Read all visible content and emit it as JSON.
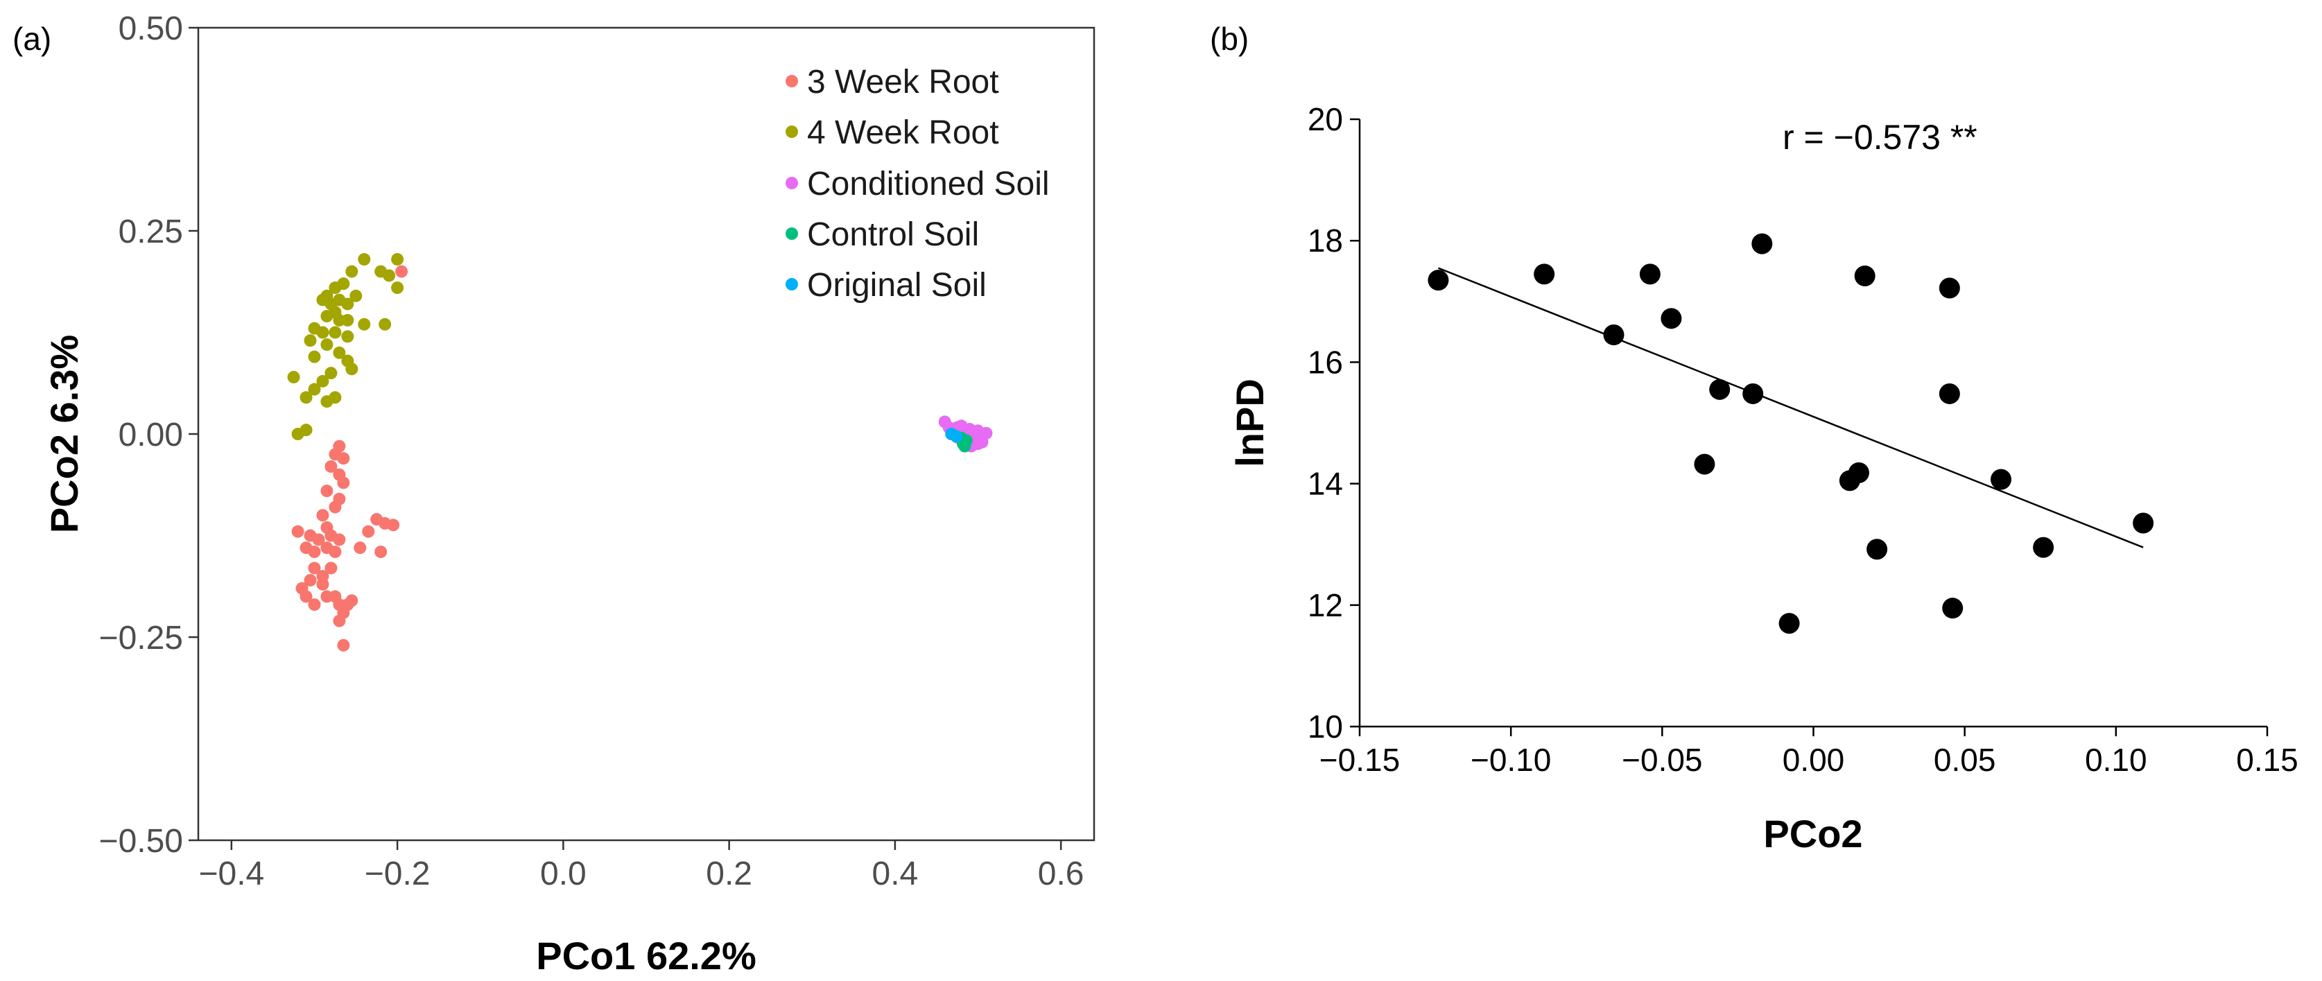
{
  "chart_data": [
    {
      "panel": "(a)",
      "type": "scatter",
      "title": "",
      "xlabel": "PCo1 62.2%",
      "ylabel": "PCo2 6.3%",
      "xlim": [
        -0.44,
        0.64
      ],
      "ylim": [
        -0.5,
        0.5
      ],
      "xticks": [
        -0.4,
        -0.2,
        0.0,
        0.2,
        0.4,
        0.6
      ],
      "xtick_labels": [
        "−0.4",
        "−0.2",
        "0.0",
        "0.2",
        "0.4",
        "0.6"
      ],
      "yticks": [
        0.5,
        0.25,
        0.0,
        -0.25,
        -0.5
      ],
      "ytick_labels": [
        "0.50",
        "0.25",
        "0.00",
        "−0.25",
        "−0.50"
      ],
      "grid": false,
      "legend_position": "top-right",
      "series": [
        {
          "name": "3 Week Root",
          "color": "#F8766D",
          "points": [
            [
              -0.195,
              0.2
            ],
            [
              -0.27,
              -0.015
            ],
            [
              -0.275,
              -0.025
            ],
            [
              -0.265,
              -0.03
            ],
            [
              -0.28,
              -0.04
            ],
            [
              -0.27,
              -0.05
            ],
            [
              -0.265,
              -0.06
            ],
            [
              -0.285,
              -0.07
            ],
            [
              -0.27,
              -0.08
            ],
            [
              -0.275,
              -0.09
            ],
            [
              -0.29,
              -0.1
            ],
            [
              -0.285,
              -0.115
            ],
            [
              -0.32,
              -0.12
            ],
            [
              -0.305,
              -0.125
            ],
            [
              -0.295,
              -0.13
            ],
            [
              -0.28,
              -0.125
            ],
            [
              -0.27,
              -0.13
            ],
            [
              -0.225,
              -0.105
            ],
            [
              -0.215,
              -0.11
            ],
            [
              -0.205,
              -0.112
            ],
            [
              -0.235,
              -0.12
            ],
            [
              -0.31,
              -0.14
            ],
            [
              -0.3,
              -0.145
            ],
            [
              -0.285,
              -0.14
            ],
            [
              -0.275,
              -0.145
            ],
            [
              -0.245,
              -0.14
            ],
            [
              -0.22,
              -0.145
            ],
            [
              -0.3,
              -0.165
            ],
            [
              -0.29,
              -0.175
            ],
            [
              -0.28,
              -0.165
            ],
            [
              -0.305,
              -0.18
            ],
            [
              -0.29,
              -0.185
            ],
            [
              -0.315,
              -0.19
            ],
            [
              -0.31,
              -0.2
            ],
            [
              -0.3,
              -0.21
            ],
            [
              -0.285,
              -0.2
            ],
            [
              -0.27,
              -0.21
            ],
            [
              -0.265,
              -0.22
            ],
            [
              -0.255,
              -0.205
            ],
            [
              -0.275,
              -0.2
            ],
            [
              -0.27,
              -0.23
            ],
            [
              -0.265,
              -0.26
            ],
            [
              -0.26,
              -0.21
            ]
          ]
        },
        {
          "name": "4 Week Root",
          "color": "#A3A500",
          "points": [
            [
              -0.24,
              0.215
            ],
            [
              -0.2,
              0.215
            ],
            [
              -0.22,
              0.2
            ],
            [
              -0.255,
              0.2
            ],
            [
              -0.265,
              0.185
            ],
            [
              -0.21,
              0.195
            ],
            [
              -0.2,
              0.18
            ],
            [
              -0.275,
              0.18
            ],
            [
              -0.285,
              0.17
            ],
            [
              -0.29,
              0.165
            ],
            [
              -0.28,
              0.16
            ],
            [
              -0.27,
              0.165
            ],
            [
              -0.26,
              0.16
            ],
            [
              -0.25,
              0.17
            ],
            [
              -0.275,
              0.15
            ],
            [
              -0.285,
              0.145
            ],
            [
              -0.27,
              0.14
            ],
            [
              -0.26,
              0.14
            ],
            [
              -0.24,
              0.135
            ],
            [
              -0.215,
              0.135
            ],
            [
              -0.3,
              0.13
            ],
            [
              -0.29,
              0.125
            ],
            [
              -0.275,
              0.125
            ],
            [
              -0.26,
              0.12
            ],
            [
              -0.305,
              0.115
            ],
            [
              -0.285,
              0.11
            ],
            [
              -0.27,
              0.1
            ],
            [
              -0.3,
              0.095
            ],
            [
              -0.26,
              0.09
            ],
            [
              -0.255,
              0.08
            ],
            [
              -0.28,
              0.075
            ],
            [
              -0.325,
              0.07
            ],
            [
              -0.29,
              0.065
            ],
            [
              -0.3,
              0.055
            ],
            [
              -0.31,
              0.045
            ],
            [
              -0.285,
              0.04
            ],
            [
              -0.275,
              0.045
            ],
            [
              -0.31,
              0.005
            ],
            [
              -0.32,
              0.0
            ]
          ]
        },
        {
          "name": "Conditioned Soil",
          "color": "#E76BF3",
          "points": [
            [
              0.46,
              0.015
            ],
            [
              0.465,
              0.008
            ],
            [
              0.47,
              0.003
            ],
            [
              0.475,
              0.008
            ],
            [
              0.48,
              0.005
            ],
            [
              0.485,
              0.002
            ],
            [
              0.49,
              0.006
            ],
            [
              0.495,
              0.0
            ],
            [
              0.5,
              0.004
            ],
            [
              0.505,
              -0.002
            ],
            [
              0.51,
              0.001
            ],
            [
              0.495,
              -0.008
            ],
            [
              0.5,
              -0.012
            ],
            [
              0.505,
              -0.01
            ],
            [
              0.485,
              -0.005
            ],
            [
              0.49,
              -0.012
            ],
            [
              0.475,
              -0.004
            ],
            [
              0.48,
              0.01
            ],
            [
              0.492,
              -0.015
            ]
          ]
        },
        {
          "name": "Control Soil",
          "color": "#00BF7D",
          "points": [
            [
              0.48,
              -0.005
            ],
            [
              0.482,
              -0.012
            ],
            [
              0.484,
              -0.015
            ],
            [
              0.486,
              -0.008
            ]
          ]
        },
        {
          "name": "Original Soil",
          "color": "#00B0F6",
          "points": [
            [
              0.468,
              0.0
            ],
            [
              0.474,
              -0.003
            ]
          ]
        }
      ]
    },
    {
      "panel": "(b)",
      "type": "scatter",
      "title": "",
      "xlabel": "PCo2",
      "ylabel": "lnPD",
      "xlim": [
        -0.15,
        0.15
      ],
      "ylim": [
        10,
        20
      ],
      "xticks": [
        -0.15,
        -0.1,
        -0.05,
        0.0,
        0.05,
        0.1,
        0.15
      ],
      "xtick_labels": [
        "−0.15",
        "−0.10",
        "−0.05",
        "0.00",
        "0.05",
        "0.10",
        "0.15"
      ],
      "yticks": [
        10,
        12,
        14,
        16,
        18,
        20
      ],
      "ytick_labels": [
        "10",
        "12",
        "14",
        "16",
        "18",
        "20"
      ],
      "grid": false,
      "annotation": "r = −0.573 **",
      "point_color": "#000000",
      "points": [
        [
          -0.124,
          17.35
        ],
        [
          -0.089,
          17.45
        ],
        [
          -0.054,
          17.45
        ],
        [
          -0.066,
          16.45
        ],
        [
          -0.047,
          16.72
        ],
        [
          -0.031,
          15.55
        ],
        [
          -0.02,
          15.48
        ],
        [
          -0.036,
          14.32
        ],
        [
          -0.017,
          17.95
        ],
        [
          0.017,
          17.42
        ],
        [
          0.045,
          17.22
        ],
        [
          0.045,
          15.48
        ],
        [
          0.012,
          14.05
        ],
        [
          0.015,
          14.18
        ],
        [
          0.062,
          14.07
        ],
        [
          0.021,
          12.92
        ],
        [
          0.076,
          12.95
        ],
        [
          0.109,
          13.35
        ],
        [
          0.046,
          11.95
        ],
        [
          -0.008,
          11.7
        ]
      ],
      "fit_line": {
        "x": [
          -0.124,
          0.109
        ],
        "y": [
          17.55,
          12.95
        ]
      }
    }
  ]
}
